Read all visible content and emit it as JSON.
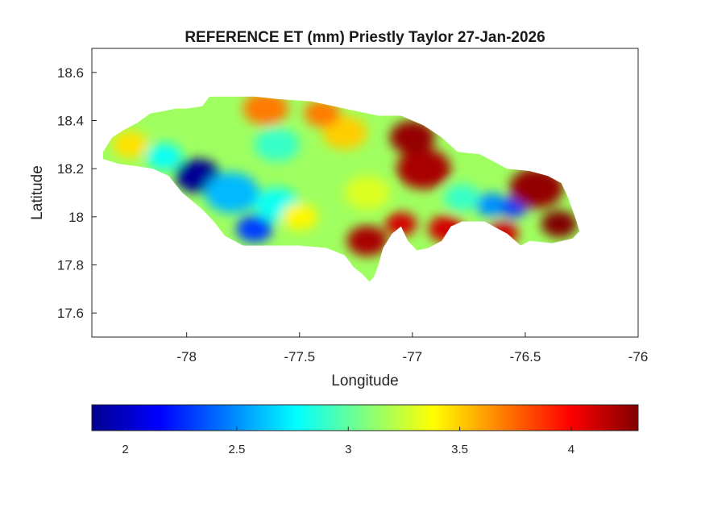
{
  "figure": {
    "title": "REFERENCE ET (mm) Priestly Taylor 27-Jan-2026",
    "xlabel": "Longitude",
    "ylabel": "Latitude"
  },
  "chart_data": {
    "type": "heatmap",
    "title": "REFERENCE ET (mm) Priestly Taylor 27-Jan-2026",
    "xlabel": "Longitude",
    "ylabel": "Latitude",
    "xlim": [
      -78.42,
      -76
    ],
    "ylim": [
      17.5,
      18.7
    ],
    "xticks": [
      -78,
      -77.5,
      -77,
      -76.5,
      -76
    ],
    "xtick_labels": [
      "-78",
      "-77.5",
      "-77",
      "-76.5",
      "-76"
    ],
    "yticks": [
      17.6,
      17.8,
      18,
      18.2,
      18.4,
      18.6
    ],
    "ytick_labels": [
      "17.6",
      "17.8",
      "18",
      "18.2",
      "18.4",
      "18.6"
    ],
    "colormap": "jet",
    "colorbar": {
      "range": [
        1.85,
        4.3
      ],
      "ticks": [
        2,
        2.5,
        3,
        3.5,
        4
      ],
      "tick_labels": [
        "2",
        "2.5",
        "3",
        "3.5",
        "4"
      ],
      "placement": "bottom"
    },
    "grid": false,
    "region_outline": [
      [
        -78.37,
        18.27
      ],
      [
        -78.33,
        18.33
      ],
      [
        -78.28,
        18.36
      ],
      [
        -78.22,
        18.39
      ],
      [
        -78.16,
        18.43
      ],
      [
        -78.1,
        18.44
      ],
      [
        -78.05,
        18.45
      ],
      [
        -78.0,
        18.45
      ],
      [
        -77.93,
        18.46
      ],
      [
        -77.9,
        18.5
      ],
      [
        -77.8,
        18.5
      ],
      [
        -77.7,
        18.5
      ],
      [
        -77.6,
        18.49
      ],
      [
        -77.45,
        18.48
      ],
      [
        -77.3,
        18.45
      ],
      [
        -77.15,
        18.42
      ],
      [
        -77.05,
        18.42
      ],
      [
        -76.95,
        18.38
      ],
      [
        -76.87,
        18.33
      ],
      [
        -76.8,
        18.27
      ],
      [
        -76.7,
        18.26
      ],
      [
        -76.58,
        18.2
      ],
      [
        -76.48,
        18.19
      ],
      [
        -76.4,
        18.17
      ],
      [
        -76.34,
        18.14
      ],
      [
        -76.31,
        18.08
      ],
      [
        -76.28,
        18.0
      ],
      [
        -76.26,
        17.94
      ],
      [
        -76.29,
        17.91
      ],
      [
        -76.38,
        17.89
      ],
      [
        -76.48,
        17.9
      ],
      [
        -76.52,
        17.88
      ],
      [
        -76.58,
        17.93
      ],
      [
        -76.68,
        17.98
      ],
      [
        -76.78,
        17.98
      ],
      [
        -76.83,
        17.96
      ],
      [
        -76.87,
        17.9
      ],
      [
        -76.93,
        17.87
      ],
      [
        -76.98,
        17.86
      ],
      [
        -77.02,
        17.9
      ],
      [
        -77.05,
        17.96
      ],
      [
        -77.09,
        17.93
      ],
      [
        -77.13,
        17.87
      ],
      [
        -77.15,
        17.8
      ],
      [
        -77.17,
        17.75
      ],
      [
        -77.19,
        17.73
      ],
      [
        -77.22,
        17.76
      ],
      [
        -77.26,
        17.79
      ],
      [
        -77.3,
        17.84
      ],
      [
        -77.38,
        17.87
      ],
      [
        -77.5,
        17.88
      ],
      [
        -77.65,
        17.88
      ],
      [
        -77.75,
        17.88
      ],
      [
        -77.83,
        17.92
      ],
      [
        -77.88,
        17.98
      ],
      [
        -77.93,
        18.03
      ],
      [
        -78.02,
        18.1
      ],
      [
        -78.08,
        18.17
      ],
      [
        -78.15,
        18.2
      ],
      [
        -78.22,
        18.21
      ],
      [
        -78.3,
        18.22
      ],
      [
        -78.37,
        18.24
      ]
    ],
    "hotspots": [
      {
        "lon": -77.95,
        "lat": 18.17,
        "r": 0.1,
        "value": 1.9
      },
      {
        "lon": -77.7,
        "lat": 17.95,
        "r": 0.08,
        "value": 2.3
      },
      {
        "lon": -77.8,
        "lat": 18.1,
        "r": 0.12,
        "value": 2.6
      },
      {
        "lon": -77.6,
        "lat": 18.05,
        "r": 0.1,
        "value": 2.8
      },
      {
        "lon": -78.1,
        "lat": 18.25,
        "r": 0.08,
        "value": 2.8
      },
      {
        "lon": -77.6,
        "lat": 18.3,
        "r": 0.1,
        "value": 2.9
      },
      {
        "lon": -76.65,
        "lat": 18.05,
        "r": 0.07,
        "value": 2.5
      },
      {
        "lon": -76.55,
        "lat": 18.04,
        "r": 0.06,
        "value": 2.3
      },
      {
        "lon": -76.78,
        "lat": 18.08,
        "r": 0.08,
        "value": 2.9
      },
      {
        "lon": -78.25,
        "lat": 18.3,
        "r": 0.08,
        "value": 3.45
      },
      {
        "lon": -77.3,
        "lat": 18.35,
        "r": 0.1,
        "value": 3.5
      },
      {
        "lon": -77.2,
        "lat": 18.1,
        "r": 0.1,
        "value": 3.3
      },
      {
        "lon": -77.5,
        "lat": 18.0,
        "r": 0.08,
        "value": 3.4
      },
      {
        "lon": -77.65,
        "lat": 18.45,
        "r": 0.1,
        "value": 3.7
      },
      {
        "lon": -77.4,
        "lat": 18.43,
        "r": 0.08,
        "value": 3.7
      },
      {
        "lon": -77.2,
        "lat": 17.9,
        "r": 0.09,
        "value": 4.2
      },
      {
        "lon": -77.05,
        "lat": 17.97,
        "r": 0.07,
        "value": 4.1
      },
      {
        "lon": -76.95,
        "lat": 18.2,
        "r": 0.12,
        "value": 4.2
      },
      {
        "lon": -77.0,
        "lat": 18.33,
        "r": 0.1,
        "value": 4.25
      },
      {
        "lon": -76.85,
        "lat": 17.95,
        "r": 0.08,
        "value": 4.1
      },
      {
        "lon": -76.45,
        "lat": 18.12,
        "r": 0.12,
        "value": 4.25
      },
      {
        "lon": -76.35,
        "lat": 17.97,
        "r": 0.08,
        "value": 4.3
      },
      {
        "lon": -76.6,
        "lat": 17.93,
        "r": 0.07,
        "value": 4.1
      }
    ]
  }
}
